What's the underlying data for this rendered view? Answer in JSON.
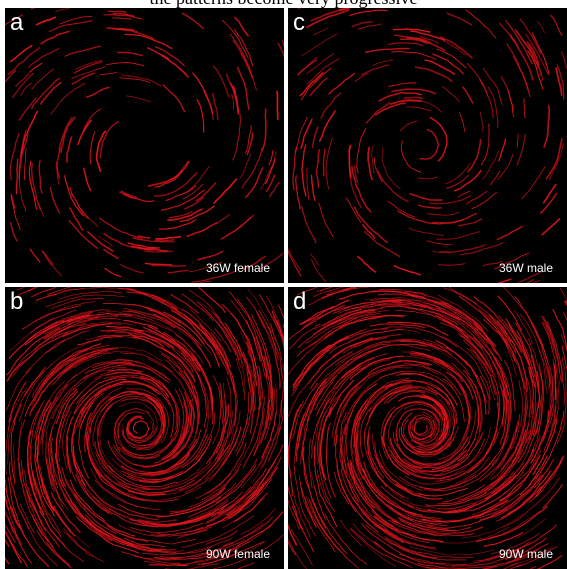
{
  "figure": {
    "top_strip_text": "the patterns become very progressive"
  },
  "panels": {
    "a": {
      "letter": "a",
      "caption": "36W female",
      "density": "sparse"
    },
    "b": {
      "letter": "b",
      "caption": "90W female",
      "density": "dense"
    },
    "c": {
      "letter": "c",
      "caption": "36W male",
      "density": "sparse"
    },
    "d": {
      "letter": "d",
      "caption": "90W male",
      "density": "dense"
    }
  },
  "colors": {
    "fiber": "#e0141c",
    "background": "#000000",
    "divider": "#ffffff"
  }
}
